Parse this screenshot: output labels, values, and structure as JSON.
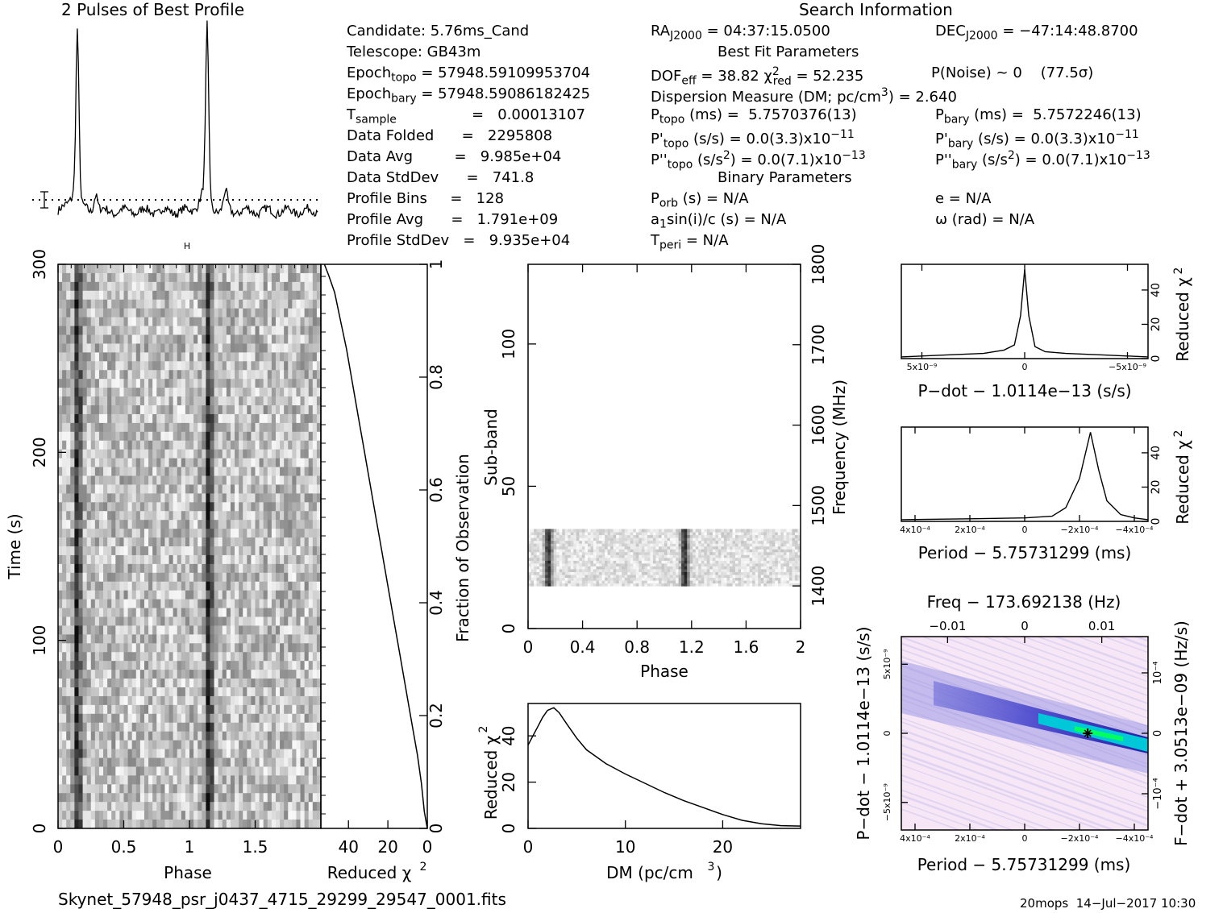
{
  "header": {
    "profile_title": "2 Pulses of Best Profile",
    "search_title": "Search Information",
    "candidate": "Candidate:  5.76ms_Cand",
    "telescope": "Telescope:  GB43m",
    "epoch_topo_label": "Epoch",
    "epoch_topo_sub": "topo",
    "epoch_topo_value": "= 57948.59109953704",
    "epoch_bary_label": "Epoch",
    "epoch_bary_sub": "bary",
    "epoch_bary_value": "= 57948.59086182425",
    "tsample_label": "T",
    "tsample_sub": "sample",
    "tsample_value": "=   0.00013107",
    "data_folded": "Data Folded      =   2295808",
    "data_avg": "Data Avg         =   9.985e+04",
    "data_stddev": "Data StdDev      =   741.8",
    "profile_bins": "Profile Bins     =   128",
    "profile_avg": "Profile Avg      =   1.791e+09",
    "profile_stddev": "Profile StdDev   =   9.935e+04",
    "ra_label": "RA",
    "ra_sub": "J2000",
    "ra_value": "= 04:37:15.0500",
    "dec_label": "DEC",
    "dec_sub": "J2000",
    "dec_value": "= −47:14:48.8700",
    "best_fit": "Best Fit Parameters",
    "dof": "DOF",
    "dof_sub": "eff",
    "dof_value": "= 38.82",
    "chi": "χ",
    "chi_sup": "2",
    "chi_sub": "red",
    "chi_value": "= 52.235",
    "pnoise": "P(Noise) ~ 0    (77.5σ)",
    "dm_line": "Dispersion Measure (DM; pc/cm",
    "dm_sup": "3",
    "dm_value": ") = 2.640",
    "ptopo": "P",
    "ptopo_sub": "topo",
    "ptopo_value": " (ms) =  5.7570376(13)",
    "pbary": "P",
    "pbary_sub": "bary",
    "pbary_value": " (ms) =  5.7572246(13)",
    "pdtopo": "P'",
    "pdtopo_sub": "topo",
    "pdtopo_value": " (s/s) = 0.0(3.3)x10",
    "pdtopo_exp": "−11",
    "pdbary": "P'",
    "pdbary_sub": "bary",
    "pdbary_value": " (s/s) = 0.0(3.3)x10",
    "pdbary_exp": "−11",
    "pddtopo": "P''",
    "pddtopo_sub": "topo",
    "pddtopo_value": " (s/s",
    "pddtopo_sup": "2",
    "pddtopo_value2": ") = 0.0(7.1)x10",
    "pddtopo_exp": "−13",
    "pddbary": "P''",
    "pddbary_sub": "bary",
    "pddbary_value": " (s/s",
    "pddbary_sup": "2",
    "pddbary_value2": ") = 0.0(7.1)x10",
    "pddbary_exp": "−13",
    "binary": "Binary Parameters",
    "porb": "P",
    "porb_sub": "orb",
    "porb_value": " (s) = N/A",
    "a1": "a",
    "a1_sub": "1",
    "a1_value": "sin(i)/c (s) = N/A",
    "tperi": "T",
    "tperi_sub": "peri",
    "tperi_value": " = N/A",
    "ecc": "e = N/A",
    "omega": "ω (rad) = N/A"
  },
  "footer": {
    "filename": "Skynet_57948_psr_j0437_4715_29299_29547_0001.fits",
    "stamp": "20mops  14−Jul−2017 10:30"
  },
  "chart_data": [
    {
      "id": "profile",
      "type": "line",
      "title": "2 Pulses of Best Profile",
      "x_range": [
        0,
        2
      ],
      "peaks_phase": [
        0.15,
        1.15
      ],
      "error_bar": true
    },
    {
      "id": "time_phase",
      "type": "heatmap",
      "xlabel": "Phase",
      "ylabel": "Time (s)",
      "xticks": [
        "0",
        "0.5",
        "1",
        "1.5"
      ],
      "yticks": [
        "0",
        "100",
        "200",
        "300"
      ],
      "xlim": [
        0,
        2
      ],
      "ylim": [
        0,
        300
      ],
      "pulse_phases": [
        0.15,
        1.15
      ]
    },
    {
      "id": "chi_vs_time",
      "type": "line",
      "xlabel": "Reduced χ",
      "xlabel_sup": "2",
      "ylabel_right": "Fraction of Observation",
      "xticks": [
        "40",
        "20",
        "0"
      ],
      "yticks_right": [
        "0",
        "0.2",
        "0.4",
        "0.6",
        "0.8",
        "1"
      ],
      "xlim": [
        54,
        0
      ],
      "x": [
        0,
        1.5,
        3,
        5,
        8,
        11,
        14,
        17,
        20,
        23,
        26,
        29,
        32,
        35,
        38,
        41,
        44,
        47,
        50,
        52.2
      ],
      "y": [
        0,
        0.03,
        0.08,
        0.13,
        0.19,
        0.25,
        0.31,
        0.37,
        0.43,
        0.49,
        0.55,
        0.61,
        0.67,
        0.73,
        0.79,
        0.85,
        0.9,
        0.95,
        0.98,
        1.0
      ]
    },
    {
      "id": "subband_phase",
      "type": "heatmap",
      "xlabel": "Phase",
      "ylabel": "Sub-band",
      "ylabel_right": "Frequency (MHz)",
      "xticks": [
        "0",
        "0.4",
        "0.8",
        "1.2",
        "1.6",
        "2"
      ],
      "yticks": [
        "0",
        "50",
        "100"
      ],
      "yticks_right": [
        "1400",
        "1500",
        "1600",
        "1700",
        "1800"
      ],
      "xlim": [
        0,
        2
      ],
      "ylim": [
        0,
        128
      ],
      "active_subbands": [
        15,
        35
      ],
      "pulse_phases": [
        0.15,
        1.15
      ]
    },
    {
      "id": "dm_curve",
      "type": "line",
      "xlabel": "DM (pc/cm",
      "xlabel_sup": "3",
      "xlabel_end": ")",
      "ylabel": "Reduced χ",
      "ylabel_sup": "2",
      "xticks": [
        "0",
        "10",
        "20"
      ],
      "yticks": [
        "0",
        "20",
        "40"
      ],
      "xlim": [
        0,
        28
      ],
      "ylim": [
        0,
        54
      ],
      "x": [
        0,
        0.5,
        1,
        1.5,
        2,
        2.64,
        3.2,
        4,
        5,
        6,
        7,
        8,
        10,
        12,
        14,
        16,
        18,
        20,
        22,
        24,
        26,
        28
      ],
      "y": [
        36,
        40,
        44,
        48,
        51,
        52.2,
        50,
        45,
        39,
        34,
        31,
        28,
        23.5,
        19.5,
        15.5,
        12,
        9,
        6,
        3.5,
        2,
        1.2,
        1
      ]
    },
    {
      "id": "pdot_curve",
      "type": "line",
      "xlabel": "P−dot − 1.0114e−13 (s/s)",
      "ylabel_right": "Reduced χ",
      "ylabel_right_sup": "2",
      "xticks": [
        "5x10⁻⁹",
        "0",
        "−5x10⁻⁹"
      ],
      "yticks": [
        "0",
        "20",
        "40"
      ],
      "xlim": [
        6e-09,
        -6e-09
      ],
      "ylim": [
        0,
        55
      ],
      "x": [
        6e-09,
        4e-09,
        2e-09,
        1e-09,
        5e-10,
        2e-10,
        0,
        -2e-10,
        -5e-10,
        -1e-09,
        -2e-09,
        -4e-09,
        -6e-09
      ],
      "y": [
        1,
        2,
        3,
        5,
        8,
        25,
        52,
        25,
        7,
        4,
        3,
        2,
        1
      ]
    },
    {
      "id": "period_curve",
      "type": "line",
      "xlabel": "Period − 5.75731299 (ms)",
      "ylabel_right": "Reduced χ",
      "ylabel_right_sup": "2",
      "xticks": [
        "4x10⁻⁴",
        "2x10⁻⁴",
        "0",
        "−2x10⁻⁴",
        "−4x10⁻⁴"
      ],
      "yticks": [
        "0",
        "20",
        "40"
      ],
      "xlim": [
        0.00045,
        -0.00045
      ],
      "ylim": [
        0,
        55
      ],
      "x": [
        0.00045,
        0.0002,
        0,
        -0.0001,
        -0.00015,
        -0.0002,
        -0.00024,
        -0.00027,
        -0.0003,
        -0.00035,
        -0.0004,
        -0.00045
      ],
      "y": [
        1,
        1.5,
        2,
        3,
        8,
        25,
        52,
        30,
        12,
        4,
        2,
        1
      ]
    },
    {
      "id": "p_pdot",
      "type": "heatmap",
      "title": "Freq − 173.692138 (Hz)",
      "xlabel": "Period − 5.75731299 (ms)",
      "ylabel": "P−dot − 1.0114e−13 (s/s)",
      "ylabel_right": "F−dot + 3.0513e−09 (Hz/s)",
      "xticks": [
        "4x10⁻⁴",
        "2x10⁻⁴",
        "0",
        "−2x10⁻⁴",
        "−4x10⁻⁴"
      ],
      "xticks_top": [
        "−0.01",
        "0",
        "0.01"
      ],
      "yticks": [
        "5x10⁻⁹",
        "0",
        "−5x10⁻⁹"
      ],
      "yticks_right": [
        "10⁻⁴",
        "0",
        "−10⁻⁴"
      ],
      "best": {
        "period_offset_ms": -0.00023,
        "pdot_offset": 0
      }
    }
  ],
  "colors": {
    "ink": "#000000",
    "heat_dark": "#1a1aa0",
    "heat_light": "#f6e6f6",
    "heat_peak": "#00ff60",
    "heat_mid": "#00c8d8"
  }
}
